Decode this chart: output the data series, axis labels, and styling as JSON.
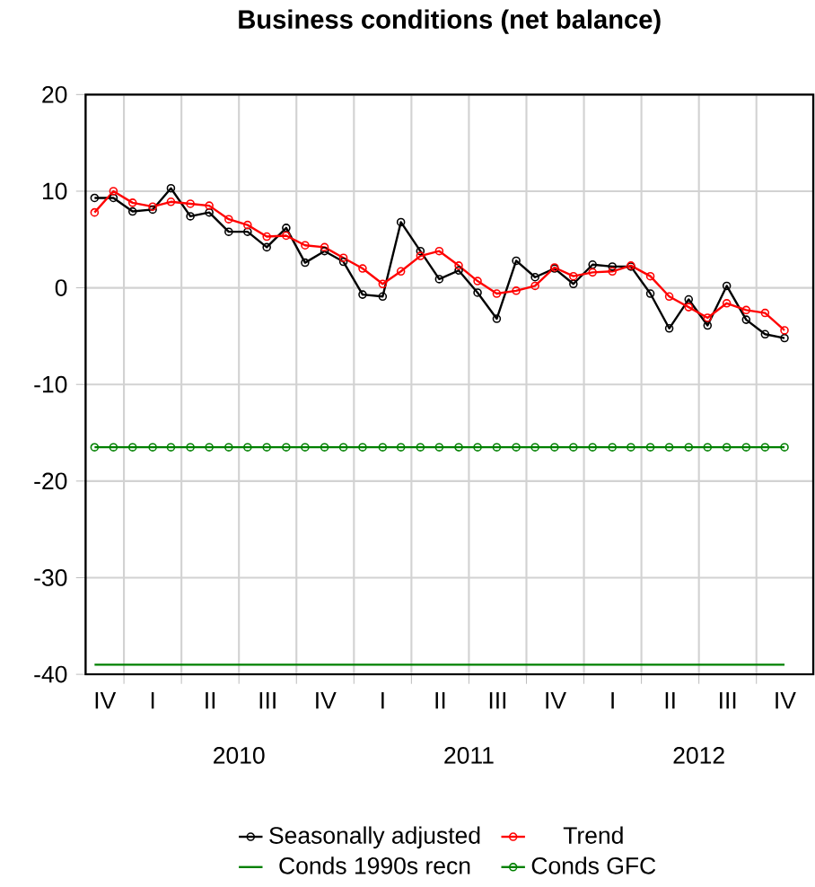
{
  "chart_data": {
    "type": "line",
    "title": "Business conditions (net balance)",
    "x": [
      "2009-11-15",
      "2009-12-15",
      "2010-01-15",
      "2010-02-15",
      "2010-03-15",
      "2010-04-15",
      "2010-05-15",
      "2010-06-15",
      "2010-07-15",
      "2010-08-15",
      "2010-09-15",
      "2010-10-15",
      "2010-11-15",
      "2010-12-15",
      "2011-01-15",
      "2011-02-15",
      "2011-03-15",
      "2011-04-15",
      "2011-05-15",
      "2011-06-15",
      "2011-07-15",
      "2011-08-15",
      "2011-09-15",
      "2011-10-15",
      "2011-11-15",
      "2011-12-15",
      "2012-01-15",
      "2012-02-15",
      "2012-03-15",
      "2012-04-15",
      "2012-05-15",
      "2012-06-15",
      "2012-07-15",
      "2012-08-15",
      "2012-09-15",
      "2012-10-15",
      "2012-11-15"
    ],
    "series": [
      {
        "name": "Seasonally adjusted",
        "color": "#000000",
        "marker": "circle",
        "values": [
          9.3,
          9.3,
          7.9,
          8.1,
          10.3,
          7.4,
          7.8,
          5.8,
          5.8,
          4.2,
          6.2,
          2.6,
          3.8,
          2.7,
          -0.7,
          -0.9,
          6.8,
          3.8,
          0.9,
          1.8,
          -0.5,
          -3.2,
          2.8,
          1.1,
          2.0,
          0.4,
          2.4,
          2.2,
          2.2,
          -0.6,
          -4.2,
          -1.2,
          -3.9,
          0.2,
          -3.3,
          -4.8,
          -5.2
        ]
      },
      {
        "name": "Trend",
        "color": "#ff0000",
        "marker": "circle",
        "values": [
          7.8,
          10.0,
          8.8,
          8.4,
          8.9,
          8.7,
          8.5,
          7.1,
          6.5,
          5.3,
          5.4,
          4.4,
          4.2,
          3.1,
          2.0,
          0.4,
          1.7,
          3.3,
          3.8,
          2.3,
          0.7,
          -0.6,
          -0.3,
          0.2,
          2.1,
          1.2,
          1.6,
          1.7,
          2.3,
          1.2,
          -0.9,
          -2.0,
          -3.1,
          -1.6,
          -2.3,
          -2.6,
          -4.4
        ]
      },
      {
        "name": "Conds 1990s recn",
        "color": "#008000",
        "marker": "none",
        "values": [
          -39,
          -39,
          -39,
          -39,
          -39,
          -39,
          -39,
          -39,
          -39,
          -39,
          -39,
          -39,
          -39,
          -39,
          -39,
          -39,
          -39,
          -39,
          -39,
          -39,
          -39,
          -39,
          -39,
          -39,
          -39,
          -39,
          -39,
          -39,
          -39,
          -39,
          -39,
          -39,
          -39,
          -39,
          -39,
          -39,
          -39
        ]
      },
      {
        "name": "Conds GFC",
        "color": "#008000",
        "marker": "circle",
        "values": [
          -16.5,
          -16.5,
          -16.5,
          -16.5,
          -16.5,
          -16.5,
          -16.5,
          -16.5,
          -16.5,
          -16.5,
          -16.5,
          -16.5,
          -16.5,
          -16.5,
          -16.5,
          -16.5,
          -16.5,
          -16.5,
          -16.5,
          -16.5,
          -16.5,
          -16.5,
          -16.5,
          -16.5,
          -16.5,
          -16.5,
          -16.5,
          -16.5,
          -16.5,
          -16.5,
          -16.5,
          -16.5,
          -16.5,
          -16.5,
          -16.5,
          -16.5,
          -16.5
        ]
      }
    ],
    "xlim": [
      "2009-11-01",
      "2012-12-31"
    ],
    "xticks": [
      {
        "value": "2010-01-01",
        "label": null
      },
      {
        "value": "2010-04-01",
        "label": null
      },
      {
        "value": "2010-07-01",
        "label": null
      },
      {
        "value": "2010-07-01",
        "label": "2010"
      },
      {
        "value": "2010-10-01",
        "label": null
      },
      {
        "value": "2011-01-01",
        "label": null
      },
      {
        "value": "2011-04-01",
        "label": null
      },
      {
        "value": "2011-07-01",
        "label": null
      },
      {
        "value": "2011-07-01",
        "label": "2011"
      },
      {
        "value": "2011-10-01",
        "label": null
      },
      {
        "value": "2012-01-01",
        "label": null
      },
      {
        "value": "2012-04-01",
        "label": null
      },
      {
        "value": "2012-07-01",
        "label": null
      },
      {
        "value": "2012-07-01",
        "label": "2012"
      },
      {
        "value": "2012-10-01",
        "label": null
      }
    ],
    "ylim": [
      -40,
      20
    ],
    "yticks": [
      -40,
      -30,
      -20,
      -10,
      0,
      10,
      20
    ],
    "annotations": [
      "IV",
      "I",
      "II",
      "III",
      "IV",
      "I",
      "II",
      "III",
      "IV",
      "I",
      "II",
      "III",
      "IV"
    ],
    "grid": true,
    "legend": "bottom",
    "line_style": "solid"
  }
}
